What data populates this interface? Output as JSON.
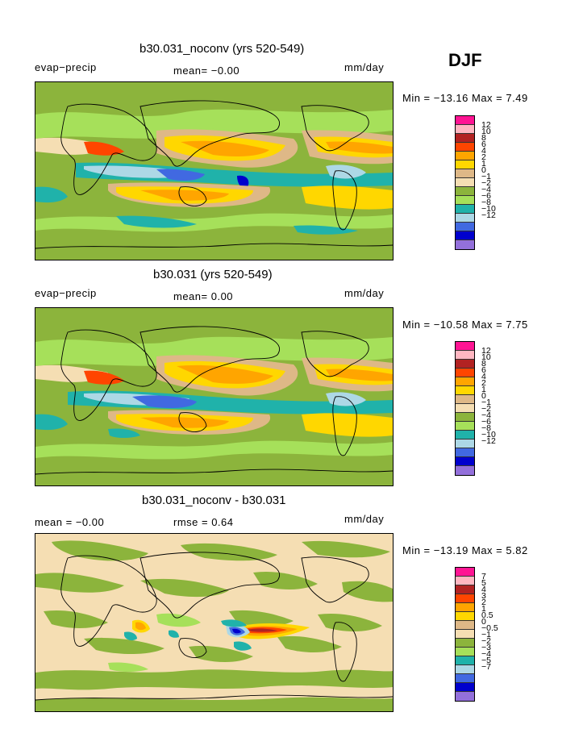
{
  "season": "DJF",
  "panels": [
    {
      "title": "b30.031_noconv (yrs 520-549)",
      "left_label": "evap−precip",
      "center_label": "mean=   −0.00",
      "right_label": "mm/day",
      "stats": "Min = −13.16 Max =    7.49",
      "legend": [
        "12",
        "10",
        "8",
        "6",
        "4",
        "2",
        "1",
        "0",
        "−1",
        "−2",
        "−4",
        "−6",
        "−8",
        "−10",
        "−12"
      ]
    },
    {
      "title": "b30.031 (yrs 520-549)",
      "left_label": "evap−precip",
      "center_label": "mean=    0.00",
      "right_label": "mm/day",
      "stats": "Min = −10.58 Max =    7.75",
      "legend": [
        "12",
        "10",
        "8",
        "6",
        "4",
        "2",
        "1",
        "0",
        "−1",
        "−2",
        "−4",
        "−6",
        "−8",
        "−10",
        "−12"
      ]
    },
    {
      "title": "b30.031_noconv - b30.031",
      "left_label": "mean =   −0.00",
      "center_label": "rmse =    0.64",
      "right_label": "mm/day",
      "stats": "Min = −13.19 Max =    5.82",
      "legend": [
        "7",
        "5",
        "4",
        "3",
        "2",
        "1",
        "0.5",
        "0",
        "−0.5",
        "−1",
        "−2",
        "−3",
        "−4",
        "−5",
        "−7"
      ]
    }
  ],
  "colors": {
    "scale": [
      "#ff1493",
      "#ffb6c1",
      "#b22222",
      "#ff4500",
      "#ffa500",
      "#ffd700",
      "#deb887",
      "#f5deb3",
      "#8cb43c",
      "#a6e05a",
      "#20b2aa",
      "#add8e6",
      "#4169e1",
      "#0000cd",
      "#9370db"
    ]
  },
  "chart_data": [
    {
      "type": "heatmap",
      "title": "b30.031_noconv (yrs 520-549)",
      "variable": "evap−precip",
      "units": "mm/day",
      "mean": -0.0,
      "min": -13.16,
      "max": 7.49,
      "contour_levels": [
        -12,
        -10,
        -8,
        -6,
        -4,
        -2,
        -1,
        0,
        1,
        2,
        4,
        6,
        8,
        10,
        12
      ]
    },
    {
      "type": "heatmap",
      "title": "b30.031 (yrs 520-549)",
      "variable": "evap−precip",
      "units": "mm/day",
      "mean": 0.0,
      "min": -10.58,
      "max": 7.75,
      "contour_levels": [
        -12,
        -10,
        -8,
        -6,
        -4,
        -2,
        -1,
        0,
        1,
        2,
        4,
        6,
        8,
        10,
        12
      ]
    },
    {
      "type": "heatmap",
      "title": "b30.031_noconv - b30.031",
      "units": "mm/day",
      "mean": -0.0,
      "rmse": 0.64,
      "min": -13.19,
      "max": 5.82,
      "contour_levels": [
        -7,
        -5,
        -4,
        -3,
        -2,
        -1,
        -0.5,
        0,
        0.5,
        1,
        2,
        3,
        4,
        5,
        7
      ]
    }
  ]
}
